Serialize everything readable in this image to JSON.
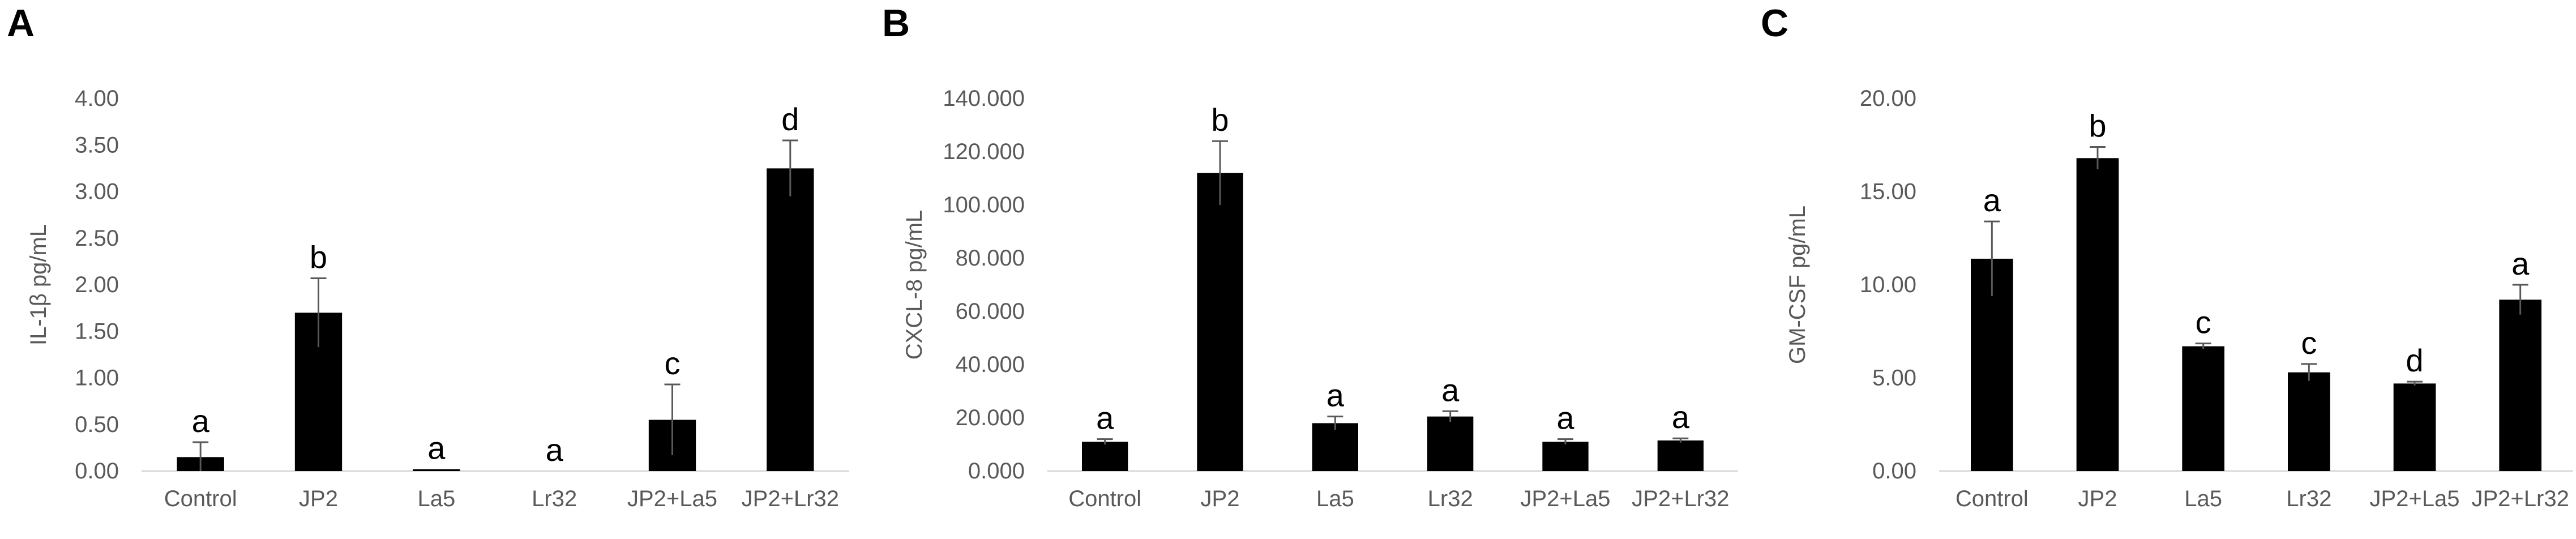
{
  "chart_data": [
    {
      "panel": "A",
      "type": "bar",
      "ylabel": "IL-1β pg/mL",
      "ylim": [
        0,
        4
      ],
      "yticks": [
        "0.00",
        "0.50",
        "1.00",
        "1.50",
        "2.00",
        "2.50",
        "3.00",
        "3.50",
        "4.00"
      ],
      "categories": [
        "Control",
        "JP2",
        "La5",
        "Lr32",
        "JP2+La5",
        "JP2+Lr32"
      ],
      "values": [
        0.15,
        1.7,
        0.02,
        0.0,
        0.55,
        3.25
      ],
      "errors": [
        0.16,
        0.37,
        0.0,
        0.0,
        0.38,
        0.3
      ],
      "letters": [
        "a",
        "b",
        "a",
        "a",
        "c",
        "d"
      ],
      "grid": false,
      "colors": {
        "bar": "#000000",
        "axis": "#d9d9d9",
        "text": "#595959"
      }
    },
    {
      "panel": "B",
      "type": "bar",
      "ylabel": "CXCL-8 pg/mL",
      "ylim": [
        0,
        140
      ],
      "yticks": [
        "0.000",
        "20.000",
        "40.000",
        "60.000",
        "80.000",
        "100.000",
        "120.000",
        "140.000"
      ],
      "categories": [
        "Control",
        "JP2",
        "La5",
        "Lr32",
        "JP2+La5",
        "JP2+Lr32"
      ],
      "values": [
        11,
        112,
        18,
        20.5,
        11,
        11.5
      ],
      "errors": [
        1.0,
        12,
        2.5,
        2.0,
        1.0,
        0.8
      ],
      "letters": [
        "a",
        "b",
        "a",
        "a",
        "a",
        "a"
      ],
      "grid": false,
      "colors": {
        "bar": "#000000",
        "axis": "#d9d9d9",
        "text": "#595959"
      }
    },
    {
      "panel": "C",
      "type": "bar",
      "ylabel": "GM-CSF pg/mL",
      "ylim": [
        0,
        20
      ],
      "yticks": [
        "0.00",
        "5.00",
        "10.00",
        "15.00",
        "20.00"
      ],
      "categories": [
        "Control",
        "JP2",
        "La5",
        "Lr32",
        "JP2+La5",
        "JP2+Lr32"
      ],
      "values": [
        11.4,
        16.8,
        6.7,
        5.3,
        4.7,
        9.2
      ],
      "errors": [
        2.0,
        0.6,
        0.15,
        0.45,
        0.1,
        0.8
      ],
      "letters": [
        "a",
        "b",
        "c",
        "c",
        "d",
        "a"
      ],
      "grid": false,
      "colors": {
        "bar": "#000000",
        "axis": "#d9d9d9",
        "text": "#595959"
      }
    }
  ]
}
